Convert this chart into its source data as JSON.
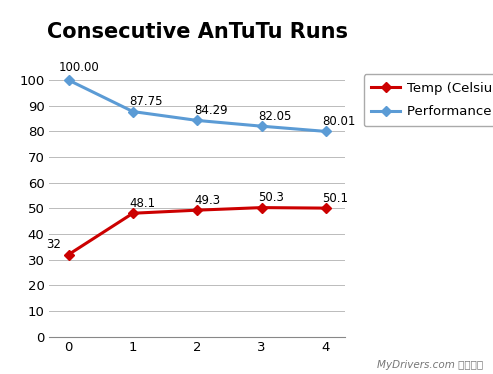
{
  "title": "Consecutive AnTuTu Runs",
  "x": [
    0,
    1,
    2,
    3,
    4
  ],
  "temp_values": [
    32,
    48.1,
    49.3,
    50.3,
    50.1
  ],
  "perf_values": [
    100.0,
    87.75,
    84.29,
    82.05,
    80.01
  ],
  "temp_labels": [
    "32",
    "48.1",
    "49.3",
    "50.3",
    "50.1"
  ],
  "perf_labels": [
    "100.00",
    "87.75",
    "84.29",
    "82.05",
    "80.01"
  ],
  "temp_color": "#CC0000",
  "perf_color": "#5B9BD5",
  "temp_legend": "Temp (Celsius)",
  "perf_legend": "Performance (%)",
  "ylim": [
    0,
    105
  ],
  "yticks": [
    0,
    10,
    20,
    30,
    40,
    50,
    60,
    70,
    80,
    90,
    100
  ],
  "xticks": [
    0,
    1,
    2,
    3,
    4
  ],
  "watermark": "MyDrivers.com 驱动之家",
  "bg_color": "#FFFFFF",
  "grid_color": "#BBBBBB",
  "title_fontsize": 15,
  "label_fontsize": 8.5,
  "legend_fontsize": 9.5,
  "tick_fontsize": 9.5
}
